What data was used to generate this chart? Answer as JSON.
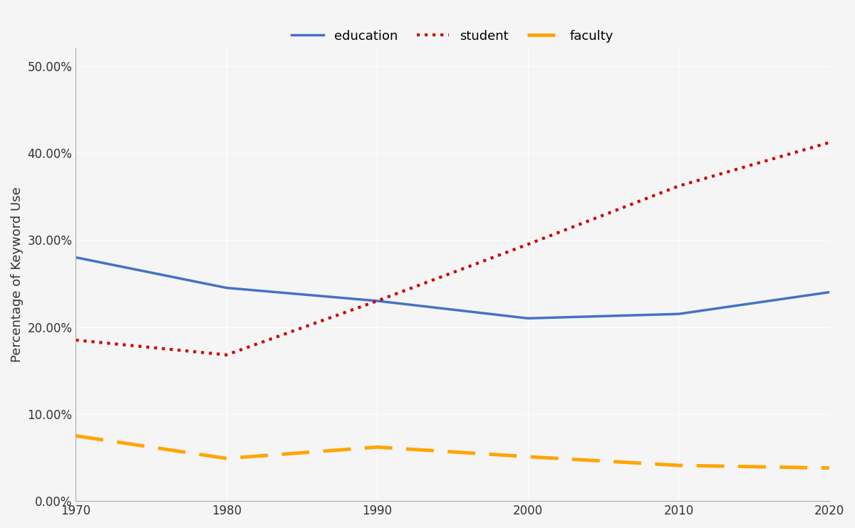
{
  "x": [
    1970,
    1980,
    1990,
    2000,
    2010,
    2020
  ],
  "education": [
    0.28,
    0.245,
    0.23,
    0.21,
    0.215,
    0.24
  ],
  "student": [
    0.185,
    0.168,
    0.23,
    0.295,
    0.362,
    0.412
  ],
  "faculty": [
    0.075,
    0.049,
    0.062,
    0.051,
    0.041,
    0.038
  ],
  "education_color": "#4472C4",
  "student_color": "#CC0000",
  "faculty_color": "#FFA500",
  "ylabel": "Percentage of Keyword Use",
  "ylim": [
    0.0,
    0.52
  ],
  "yticks": [
    0.0,
    0.1,
    0.2,
    0.3,
    0.4,
    0.5
  ],
  "xlim": [
    1970,
    2020
  ],
  "xticks": [
    1970,
    1980,
    1990,
    2000,
    2010,
    2020
  ],
  "background_color": "#f5f5f5",
  "grid_color": "#ffffff",
  "legend_labels": [
    "education",
    "student",
    "faculty"
  ]
}
